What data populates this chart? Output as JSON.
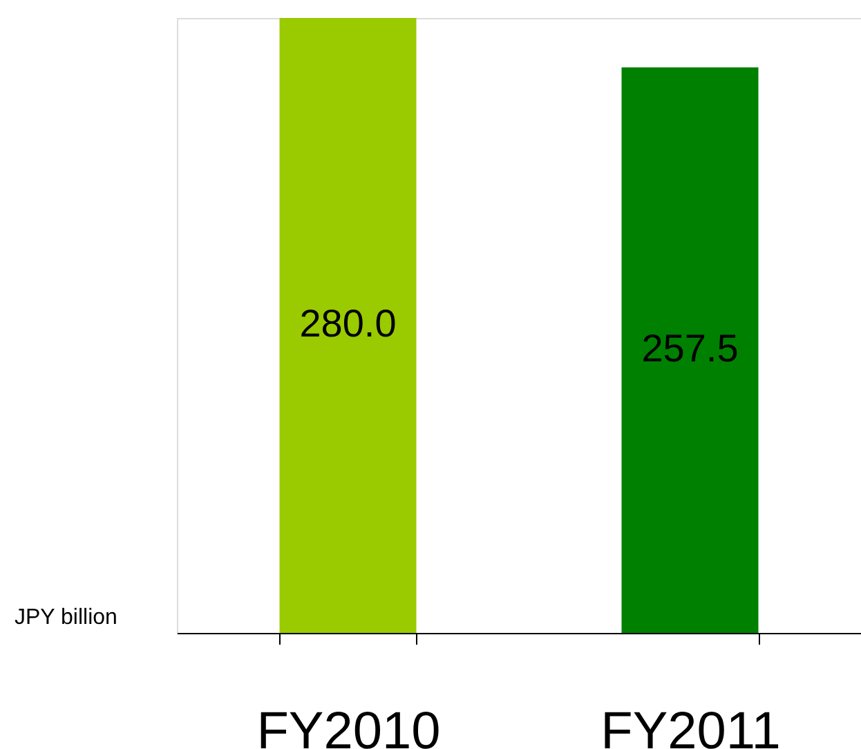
{
  "chart_data": {
    "type": "bar",
    "ylabel": "JPY billion",
    "categories": [
      "FY2010",
      "FY2011"
    ],
    "values": [
      280.0,
      257.5
    ],
    "value_labels": [
      "280.0",
      "257.5"
    ],
    "colors": [
      "#9aca00",
      "#008000"
    ],
    "ylim": [
      0,
      280
    ],
    "grid": false
  }
}
